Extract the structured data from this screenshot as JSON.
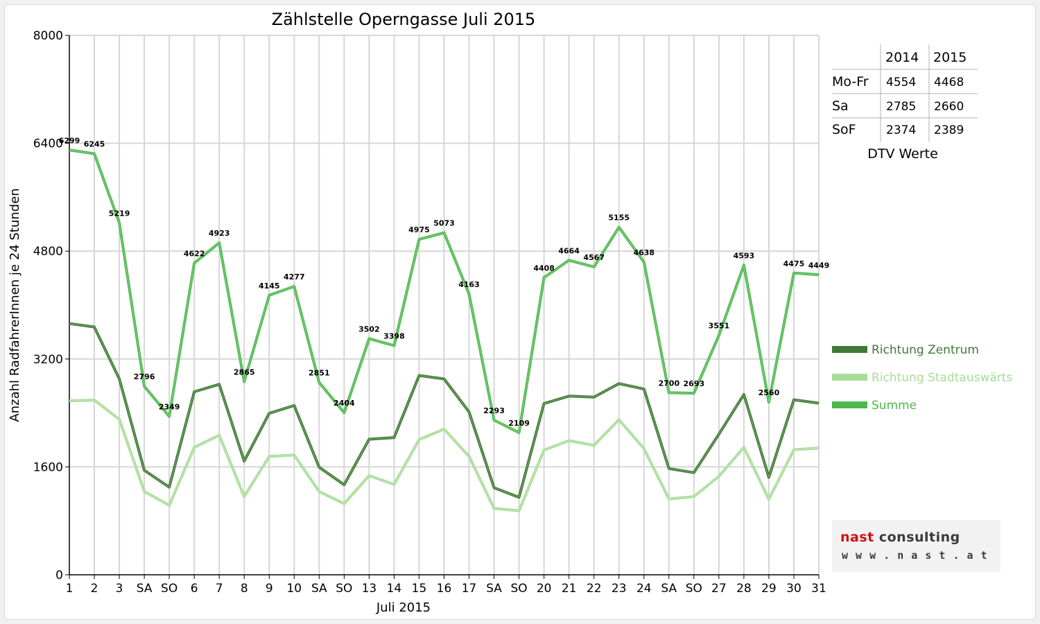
{
  "chart_data": {
    "type": "line",
    "title": "Zählstelle Operngasse Juli 2015",
    "xlabel": "Juli 2015",
    "ylabel": "Anzahl RadfahrerInnen je 24 Stunden",
    "ylim": [
      0,
      8000
    ],
    "yticks": [
      "0",
      "1600",
      "3200",
      "4800",
      "6400",
      "8000"
    ],
    "grid": true,
    "legend_position": "right",
    "categories": [
      "1",
      "2",
      "3",
      "SA",
      "SO",
      "6",
      "7",
      "8",
      "9",
      "10",
      "SA",
      "SO",
      "13",
      "14",
      "15",
      "16",
      "17",
      "SA",
      "SO",
      "20",
      "21",
      "22",
      "23",
      "24",
      "SA",
      "SO",
      "27",
      "28",
      "29",
      "30",
      "31"
    ],
    "weekend_labels": [
      "SO"
    ],
    "weekend_color": "#e00000",
    "series": [
      {
        "name": "Richtung Zentrum",
        "color": "#3e7a34",
        "values": [
          3725,
          3675,
          2905,
          1550,
          1300,
          2715,
          2825,
          1685,
          2395,
          2510,
          1595,
          1335,
          2010,
          2035,
          2955,
          2905,
          2415,
          1290,
          1150,
          2540,
          2650,
          2635,
          2835,
          2755,
          1575,
          1515,
          2085,
          2675,
          1445,
          2595,
          2545
        ]
      },
      {
        "name": "Richtung Stadtauswärts",
        "color": "#a8dc98",
        "values": [
          2580,
          2590,
          2305,
          1235,
          1030,
          1890,
          2070,
          1160,
          1755,
          1775,
          1235,
          1055,
          1470,
          1340,
          2005,
          2160,
          1755,
          985,
          950,
          1850,
          1990,
          1920,
          2300,
          1870,
          1125,
          1160,
          1460,
          1890,
          1120,
          1855,
          1880
        ]
      },
      {
        "name": "Summe",
        "color": "#4cb84c",
        "values": [
          6299,
          6245,
          5219,
          2796,
          2349,
          4622,
          4923,
          2865,
          4145,
          4277,
          2851,
          2404,
          3502,
          3398,
          4975,
          5073,
          4163,
          2293,
          2109,
          4408,
          4664,
          4567,
          5155,
          4638,
          2700,
          2693,
          3551,
          4593,
          2560,
          4475,
          4449
        ]
      }
    ],
    "data_labels": [
      "6299",
      "6245",
      "5219",
      "2796",
      "2349",
      "4622",
      "4923",
      "2865",
      "4145",
      "4277",
      "2851",
      "2404",
      "3502",
      "3398",
      "4975",
      "5073",
      "4163",
      "2293",
      "2109",
      "4408",
      "4664",
      "4567",
      "5155",
      "4638",
      "2700",
      "2693",
      "3551",
      "4593",
      "2560",
      "4475",
      "4449"
    ]
  },
  "dtv_table": {
    "caption": "DTV Werte",
    "headers": [
      "",
      "2014",
      "2015"
    ],
    "rows": [
      {
        "label": "Mo-Fr",
        "v2014": "4554",
        "v2015": "4468"
      },
      {
        "label": "Sa",
        "v2014": "2785",
        "v2015": "2660"
      },
      {
        "label": "SoF",
        "v2014": "2374",
        "v2015": "2389"
      }
    ]
  },
  "logo": {
    "brand_part1": "nast",
    "brand_part2": " consulting",
    "url": "w w w . n a s t . a t",
    "brand_red": "#d01010"
  }
}
